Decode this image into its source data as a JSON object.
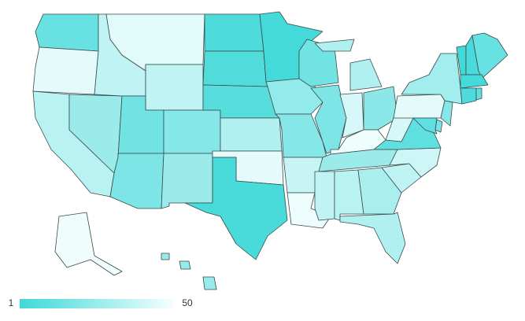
{
  "chart_data": {
    "type": "choropleth",
    "colorscale": {
      "min": 1,
      "max": 50,
      "low_color": "#3ed8d8",
      "high_color": "#f4fefe"
    },
    "values": {
      "WA": 12,
      "OR": 46,
      "CA": 34,
      "NV": 26,
      "ID": 36,
      "MT": 45,
      "WY": 36,
      "UT": 15,
      "AZ": 18,
      "CO": 20,
      "NM": 26,
      "ND": 5,
      "SD": 6,
      "NE": 8,
      "KS": 32,
      "OK": 46,
      "TX": 4,
      "MN": 3,
      "IA": 24,
      "MO": 20,
      "AR": 38,
      "LA": 48,
      "WI": 15,
      "IL": 18,
      "MI": 32,
      "IN": 42,
      "OH": 22,
      "KY": 49,
      "TN": 26,
      "MS": 36,
      "AL": 34,
      "GA": 30,
      "FL": 32,
      "SC": 36,
      "NC": 40,
      "VA": 10,
      "WV": 42,
      "PA": 46,
      "NY": 28,
      "NJ": 20,
      "DE": 16,
      "MD": 10,
      "VT": 2,
      "NH": 4,
      "ME": 12,
      "MA": 3,
      "CT": 5,
      "RI": 10,
      "AK": 49,
      "HI": 25
    }
  }
}
